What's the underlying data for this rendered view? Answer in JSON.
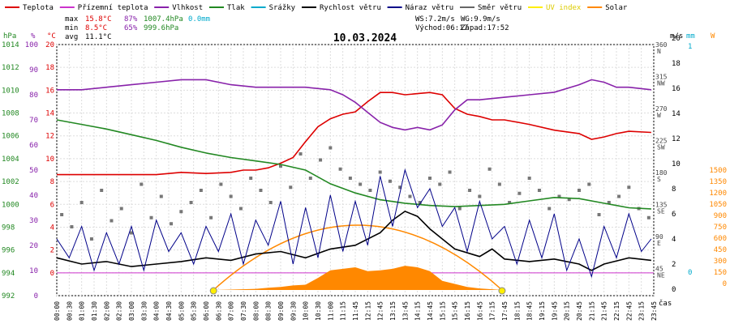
{
  "legend": [
    {
      "label": "Teplota",
      "color": "#dd0000"
    },
    {
      "label": "Přízemní teplota",
      "color": "#cc33cc"
    },
    {
      "label": "Vlhkost",
      "color": "#8822aa"
    },
    {
      "label": "Tlak",
      "color": "#228822"
    },
    {
      "label": "Srážky",
      "color": "#00aacc"
    },
    {
      "label": "Rychlost větru",
      "color": "#000000"
    },
    {
      "label": "Náraz větru",
      "color": "#000088"
    },
    {
      "label": "Směr větru",
      "color": "#666666"
    },
    {
      "label": "UV index",
      "color": "#ffee00"
    },
    {
      "label": "Solar",
      "color": "#ff8800"
    }
  ],
  "stats": {
    "max_label": "max",
    "max_temp": "15.8°C",
    "max_hum": "87%",
    "max_press": "1007.4hPa",
    "rain": "0.0mm",
    "min_label": "min",
    "min_temp": "8.5°C",
    "min_hum": "65%",
    "min_press": "999.6hPa",
    "avg_label": "avg",
    "avg_temp": "11.1°C",
    "ws": "WS:7.2m/s",
    "wg": "WG:9.9m/s",
    "sunrise": "Východ:06:17",
    "sunset": "Západ:17:52"
  },
  "chart_data": {
    "type": "line",
    "title": "10.03.2024",
    "xlabel": "čas",
    "x_ticks": [
      "00:00",
      "00:30",
      "01:00",
      "01:30",
      "02:00",
      "02:30",
      "03:00",
      "03:30",
      "04:00",
      "04:30",
      "05:00",
      "05:30",
      "06:00",
      "06:30",
      "07:00",
      "07:30",
      "08:00",
      "08:30",
      "09:00",
      "09:30",
      "10:00",
      "10:30",
      "11:00",
      "11:15",
      "11:45",
      "12:15",
      "12:45",
      "13:15",
      "13:45",
      "14:15",
      "14:45",
      "15:15",
      "15:45",
      "16:15",
      "16:45",
      "17:15",
      "17:45",
      "18:15",
      "18:45",
      "19:15",
      "19:45",
      "20:15",
      "20:45",
      "21:15",
      "21:45",
      "22:15",
      "22:45",
      "23:15",
      "23:45"
    ],
    "axes": {
      "pressure": {
        "unit": "hPa",
        "min": 992,
        "max": 1014,
        "ticks": [
          992,
          994,
          996,
          998,
          1000,
          1002,
          1004,
          1006,
          1008,
          1010,
          1012,
          1014
        ]
      },
      "humidity": {
        "unit": "%",
        "min": 0,
        "max": 100,
        "ticks": [
          0,
          10,
          20,
          30,
          40,
          50,
          60,
          70,
          80,
          90,
          100
        ]
      },
      "temperature": {
        "unit": "°C",
        "min": -2,
        "max": 20,
        "ticks": [
          0,
          2,
          4,
          6,
          8,
          10,
          12,
          14,
          16,
          18,
          20
        ]
      },
      "wind_dir": {
        "unit": "°",
        "labels": [
          {
            "v": "360",
            "d": "N"
          },
          {
            "v": "315",
            "d": "NW"
          },
          {
            "v": "270",
            "d": "W"
          },
          {
            "v": "225",
            "d": "SW"
          },
          {
            "v": "180",
            "d": "S"
          },
          {
            "v": "135",
            "d": "SE"
          },
          {
            "v": "90",
            "d": "E"
          },
          {
            "v": "45",
            "d": "NE"
          }
        ]
      },
      "wind_speed": {
        "unit": "m/s",
        "ticks": [
          0,
          2,
          4,
          6,
          8,
          10,
          12,
          14,
          16,
          18,
          20
        ]
      },
      "rain": {
        "unit": "mm",
        "ticks": [
          0,
          1
        ]
      },
      "solar": {
        "unit": "W",
        "ticks": [
          0,
          150,
          300,
          450,
          600,
          750,
          900,
          1050,
          1200,
          1350,
          1500
        ]
      }
    },
    "series": [
      {
        "name": "Teplota",
        "axis": "temperature",
        "color": "#dd0000",
        "x": [
          0,
          1,
          2,
          3,
          4,
          5,
          6,
          7,
          7.5,
          8,
          8.5,
          9,
          9.5,
          10,
          10.5,
          11,
          11.5,
          12,
          12.5,
          13,
          13.5,
          14,
          14.5,
          15,
          15.5,
          16,
          16.5,
          17,
          17.5,
          18,
          19,
          20,
          21,
          21.5,
          22,
          22.5,
          23,
          23.9
        ],
        "y": [
          8.6,
          8.6,
          8.6,
          8.6,
          8.6,
          8.8,
          8.7,
          8.8,
          9.0,
          9.0,
          9.2,
          9.6,
          10.1,
          11.5,
          12.8,
          13.5,
          13.9,
          14.1,
          15.0,
          15.8,
          15.8,
          15.6,
          15.7,
          15.8,
          15.6,
          14.4,
          13.9,
          13.7,
          13.4,
          13.4,
          13.0,
          12.5,
          12.2,
          11.7,
          11.9,
          12.2,
          12.4,
          12.3
        ]
      },
      {
        "name": "Vlhkost",
        "axis": "humidity",
        "color": "#8822aa",
        "x": [
          0,
          1,
          2,
          3,
          4,
          5,
          6,
          7,
          8,
          9,
          10,
          11,
          11.5,
          12,
          12.5,
          13,
          13.5,
          14,
          14.5,
          15,
          15.5,
          16,
          16.5,
          17,
          18,
          19,
          20,
          21,
          21.5,
          22,
          22.5,
          23,
          23.9
        ],
        "y": [
          82,
          82,
          83,
          84,
          85,
          86,
          86,
          84,
          83,
          83,
          83,
          82,
          80,
          77,
          73,
          69,
          67,
          66,
          67,
          66,
          68,
          74,
          78,
          78,
          79,
          80,
          81,
          84,
          86,
          85,
          83,
          83,
          82
        ]
      },
      {
        "name": "Tlak",
        "axis": "pressure",
        "color": "#228822",
        "x": [
          0,
          1,
          2,
          3,
          4,
          5,
          6,
          7,
          8,
          9,
          10,
          11,
          12,
          13,
          14,
          15,
          16,
          17,
          18,
          19,
          20,
          21,
          22,
          23,
          23.9
        ],
        "y": [
          1007.4,
          1007.0,
          1006.6,
          1006.1,
          1005.6,
          1005.0,
          1004.5,
          1004.1,
          1003.8,
          1003.5,
          1003.0,
          1001.8,
          1001.0,
          1000.4,
          1000.1,
          999.9,
          999.8,
          999.9,
          1000.0,
          1000.3,
          1000.6,
          1000.5,
          1000.1,
          999.7,
          999.6
        ]
      },
      {
        "name": "Solar",
        "axis": "solar",
        "color": "#ff8800",
        "type": "area",
        "x": [
          6.3,
          7,
          8,
          8.5,
          9,
          9.5,
          10,
          10.5,
          11,
          11.5,
          12,
          12.5,
          13,
          13.5,
          14,
          14.5,
          15,
          15.5,
          16,
          16.5,
          17,
          17.5,
          17.9
        ],
        "y": [
          0,
          5,
          15,
          30,
          40,
          60,
          70,
          160,
          260,
          280,
          300,
          250,
          260,
          280,
          320,
          300,
          250,
          120,
          80,
          40,
          20,
          10,
          0
        ]
      },
      {
        "name": "Rychlost větru",
        "axis": "wind_speed",
        "color": "#000000",
        "x": [
          0,
          1,
          2,
          3,
          4,
          5,
          6,
          7,
          8,
          9,
          10,
          11,
          12,
          13,
          13.5,
          14,
          14.5,
          15,
          15.5,
          16,
          17,
          17.5,
          18,
          19,
          20,
          21,
          21.5,
          22,
          23,
          23.9
        ],
        "y": [
          2.5,
          2.0,
          2.2,
          1.8,
          2.0,
          2.2,
          2.5,
          2.3,
          2.8,
          3.0,
          2.5,
          3.2,
          3.5,
          4.5,
          5.5,
          6.2,
          5.8,
          4.8,
          4.0,
          3.2,
          2.6,
          3.2,
          2.4,
          2.2,
          2.4,
          2.0,
          1.5,
          2.0,
          2.5,
          2.3
        ]
      },
      {
        "name": "Náraz větru",
        "axis": "wind_speed",
        "color": "#000088",
        "x": [
          0,
          0.5,
          1,
          1.5,
          2,
          2.5,
          3,
          3.5,
          4,
          4.5,
          5,
          5.5,
          6,
          6.5,
          7,
          7.5,
          8,
          8.5,
          9,
          9.5,
          10,
          10.5,
          11,
          11.5,
          12,
          12.5,
          13,
          13.5,
          14,
          14.5,
          15,
          15.5,
          16,
          16.5,
          17,
          17.5,
          18,
          18.5,
          19,
          19.5,
          20,
          20.5,
          21,
          21.5,
          22,
          22.5,
          23,
          23.5,
          23.9
        ],
        "y": [
          4,
          2.5,
          5,
          1.5,
          4.5,
          2,
          5,
          1.5,
          5.5,
          3,
          4.5,
          2,
          5,
          3,
          6,
          2,
          5.5,
          3.5,
          7,
          2,
          6.5,
          2.5,
          7.5,
          3,
          7,
          3.5,
          9,
          5,
          9.5,
          6.5,
          8,
          5,
          6.5,
          3,
          7,
          4,
          5,
          2,
          5.5,
          2.5,
          6,
          1.5,
          4,
          1,
          5,
          2.5,
          6,
          3,
          4
        ]
      },
      {
        "name": "UV index",
        "axis": "solar",
        "color": "#ffee00",
        "type": "points",
        "x": [
          6.3,
          17.9
        ],
        "y": [
          0,
          0
        ]
      }
    ],
    "wind_direction_points": {
      "axis": "wind_dir",
      "x": [
        0.2,
        0.6,
        1.0,
        1.4,
        1.8,
        2.2,
        2.6,
        3.0,
        3.4,
        3.8,
        4.2,
        4.6,
        5.0,
        5.4,
        5.8,
        6.2,
        6.6,
        7.0,
        7.4,
        7.8,
        8.2,
        8.6,
        9.0,
        9.4,
        9.8,
        10.2,
        10.6,
        11.0,
        11.4,
        11.8,
        12.2,
        12.6,
        13.0,
        13.4,
        13.8,
        14.2,
        14.6,
        15.0,
        15.4,
        15.8,
        16.2,
        16.6,
        17.0,
        17.4,
        17.8,
        18.2,
        18.6,
        19.0,
        19.4,
        19.8,
        20.2,
        20.6,
        21.0,
        21.4,
        21.8,
        22.2,
        22.6,
        23.0,
        23.4,
        23.8
      ],
      "y": [
        100,
        80,
        120,
        60,
        140,
        90,
        110,
        70,
        150,
        95,
        130,
        85,
        105,
        120,
        140,
        95,
        150,
        130,
        110,
        160,
        140,
        120,
        180,
        145,
        200,
        160,
        190,
        210,
        175,
        160,
        150,
        140,
        170,
        155,
        145,
        130,
        120,
        160,
        150,
        170,
        110,
        140,
        130,
        175,
        150,
        120,
        135,
        160,
        140,
        110,
        130,
        125,
        140,
        150,
        100,
        120,
        130,
        145,
        110,
        95
      ]
    },
    "reference_lines": [
      {
        "axis": "temperature",
        "y": 0,
        "color": "#cc33cc"
      }
    ]
  }
}
